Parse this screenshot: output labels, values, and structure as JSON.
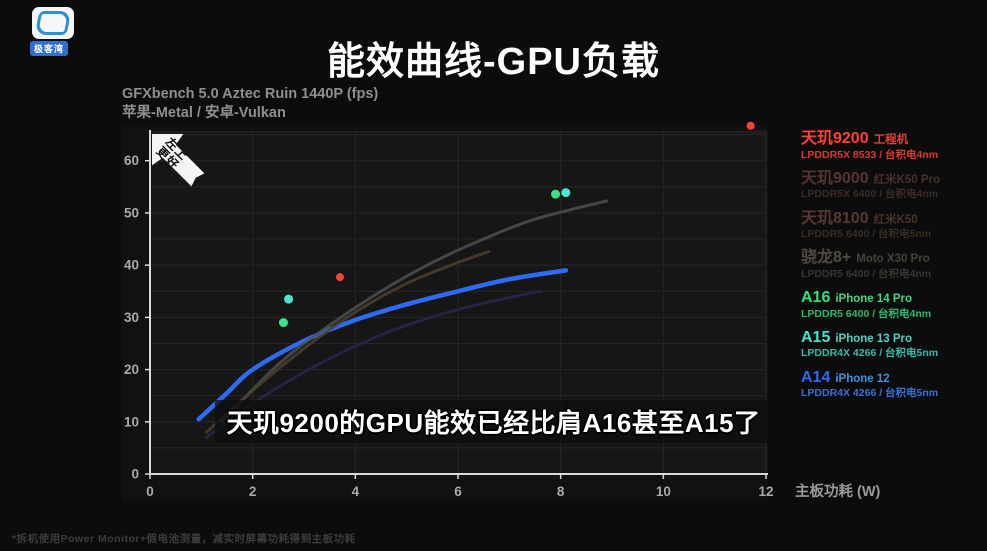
{
  "logo": {
    "label": "极客湾"
  },
  "header": {
    "title": "能效曲线-GPU负载",
    "subtitle1": "GFXbench 5.0 Aztec Ruin 1440P (fps)",
    "subtitle2": "苹果-Metal / 安卓-Vulkan"
  },
  "badge": {
    "line1": "左上",
    "line2": "更好"
  },
  "caption": {
    "text": "天玑9200的GPU能效已经比肩A16甚至A15了"
  },
  "footnote": {
    "text": "*拆机使用Power Monitor+假电池测量，减实时屏幕功耗得到主板功耗"
  },
  "legend": {
    "items": [
      {
        "id": "d9200",
        "chip": "天玑9200",
        "device": "工程机",
        "spec": "LPDDR5X 8533 / 台积电4nm",
        "chip_color": "#ff4137",
        "device_color": "#e6413a",
        "spec_color": "#d63a31",
        "dimmed": false
      },
      {
        "id": "d9000",
        "chip": "天玑9000",
        "device": "红米K50 Pro",
        "spec": "LPDDR5X 6400 / 台积电4nm",
        "chip_color": "#553530",
        "device_color": "#46302b",
        "spec_color": "#382c27",
        "dimmed": true
      },
      {
        "id": "d8100",
        "chip": "天玑8100",
        "device": "红米K50",
        "spec": "LPDDR5 6400 / 台积电5nm",
        "chip_color": "#54392c",
        "device_color": "#463328",
        "spec_color": "#362d25",
        "dimmed": true
      },
      {
        "id": "sd8plus",
        "chip": "骁龙8+",
        "device": "Moto X30 Pro",
        "spec": "LPDDR5 6400 / 台积电4nm",
        "chip_color": "#4f4a42",
        "device_color": "#45413a",
        "spec_color": "#383530",
        "dimmed": true
      },
      {
        "id": "a16",
        "chip": "A16",
        "device": "iPhone 14 Pro",
        "spec": "LPDDR5 6400 / 台积电4nm",
        "chip_color": "#2ee47c",
        "device_color": "#43d488",
        "spec_color": "#2cba6c",
        "dimmed": false
      },
      {
        "id": "a15",
        "chip": "A15",
        "device": "iPhone 13 Pro",
        "spec": "LPDDR4X 4266 / 台积电5nm",
        "chip_color": "#45e6cc",
        "device_color": "#4cd6c2",
        "spec_color": "#35bba8",
        "dimmed": false
      },
      {
        "id": "a14",
        "chip": "A14",
        "device": "iPhone 12",
        "spec": "LPDDR4X 4266 / 台积电5nm",
        "chip_color": "#2e6cf5",
        "device_color": "#3e93d8",
        "spec_color": "#3b6fd8",
        "dimmed": false
      }
    ]
  },
  "chart_data": {
    "type": "line",
    "title": "能效曲线-GPU负载",
    "xlabel": "主板功耗 (W)",
    "ylabel": "GFXbench 5.0 Aztec Ruin 1440P (fps)",
    "xlim": [
      0,
      12
    ],
    "ylim": [
      0,
      65.5
    ],
    "x_ticks": [
      0,
      2,
      4,
      6,
      8,
      10,
      12
    ],
    "y_ticks": [
      0,
      10,
      20,
      30,
      40,
      50,
      60
    ],
    "grid": {
      "y_step": 5,
      "on": true,
      "color": "#262626"
    },
    "colors": {
      "plot_bg": "#161616",
      "axis": "#d9d9d9",
      "tick_label": "#a9a9a9",
      "xlabel": "#9a9a9a"
    },
    "series": [
      {
        "id": "a14",
        "name": "A14 iPhone 12",
        "color": "#2e6bf5",
        "width": 4.5,
        "opacity": 1,
        "points": [
          [
            0.95,
            10.5
          ],
          [
            1.5,
            15.5
          ],
          [
            2,
            20
          ],
          [
            3,
            25.5
          ],
          [
            4,
            29.5
          ],
          [
            5,
            32.5
          ],
          [
            6,
            35
          ],
          [
            7,
            37.3
          ],
          [
            8.1,
            39
          ]
        ]
      },
      {
        "id": "d9000",
        "name": "天玑9000 红米K50 Pro",
        "color": "#4f4f4f",
        "width": 3,
        "opacity": 0.85,
        "points": [
          [
            1.4,
            10
          ],
          [
            2.5,
            21
          ],
          [
            3.5,
            28.5
          ],
          [
            4.5,
            35
          ],
          [
            5.5,
            40.5
          ],
          [
            6.5,
            45
          ],
          [
            7.5,
            48.8
          ],
          [
            8.9,
            52.3
          ]
        ]
      },
      {
        "id": "sd8plus",
        "name": "骁龙8+ Moto X30 Pro",
        "color": "#4a3f2c",
        "width": 3,
        "opacity": 0.85,
        "points": [
          [
            1.1,
            8
          ],
          [
            2,
            16
          ],
          [
            3,
            24
          ],
          [
            4,
            31
          ],
          [
            5,
            36.5
          ],
          [
            6,
            40.5
          ],
          [
            6.6,
            42.6
          ]
        ]
      },
      {
        "id": "d8100",
        "name": "天玑8100 红米K50",
        "color": "#26264a",
        "width": 3,
        "opacity": 0.9,
        "points": [
          [
            1.1,
            7
          ],
          [
            2,
            13.5
          ],
          [
            3,
            19.5
          ],
          [
            4,
            24.5
          ],
          [
            5,
            28.5
          ],
          [
            6,
            31.5
          ],
          [
            7,
            33.8
          ],
          [
            7.6,
            35
          ]
        ]
      }
    ],
    "scatter": [
      {
        "id": "d9200",
        "name": "天玑9200 工程机",
        "color": "#f5433a",
        "r": 4,
        "points": [
          [
            3.7,
            37.7
          ],
          [
            11.7,
            66.7
          ]
        ]
      },
      {
        "id": "a16",
        "name": "A16 iPhone 14 Pro",
        "color": "#3ee083",
        "r": 4.5,
        "points": [
          [
            2.6,
            29
          ],
          [
            7.9,
            53.6
          ]
        ]
      },
      {
        "id": "a15",
        "name": "A15 iPhone 13 Pro",
        "color": "#4fe3d2",
        "r": 4.5,
        "points": [
          [
            2.7,
            33.5
          ],
          [
            8.1,
            53.9
          ]
        ]
      }
    ]
  }
}
